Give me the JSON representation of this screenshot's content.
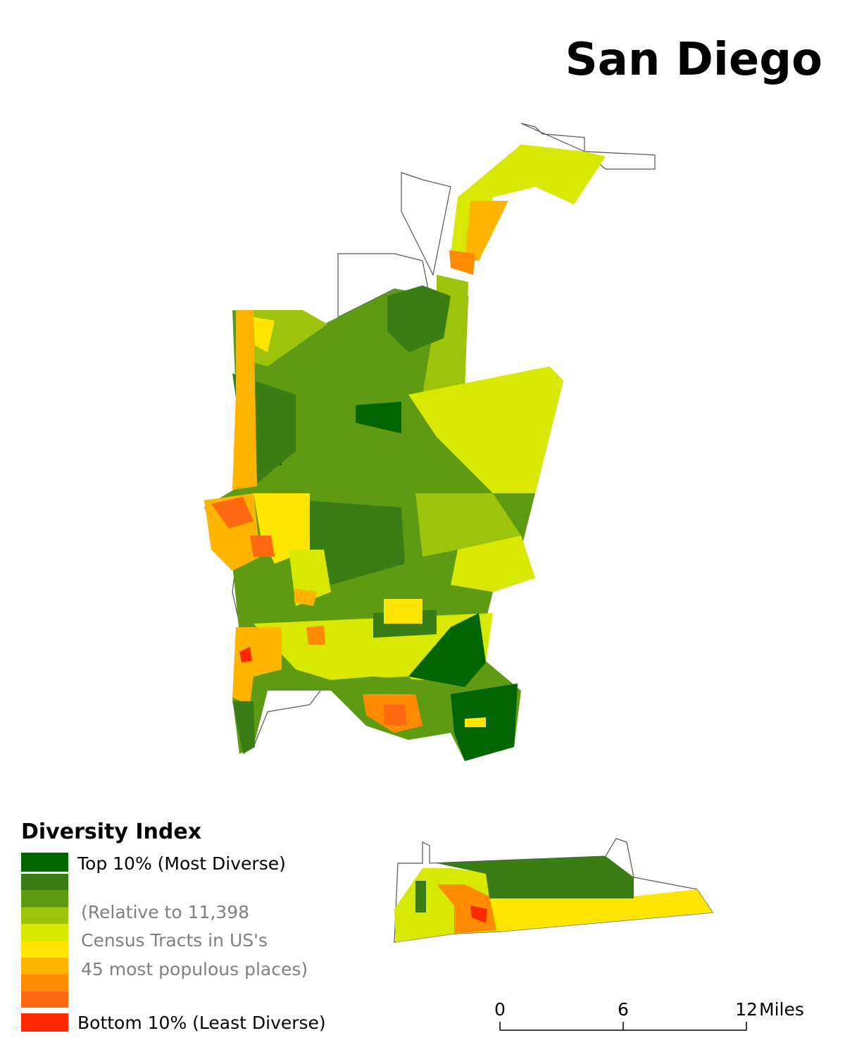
{
  "header": {
    "title": "San Diego"
  },
  "legend": {
    "title": "Diversity Index",
    "swatches": [
      "#006400",
      "#3a7d14",
      "#5e9a12",
      "#9dc40a",
      "#d8e800",
      "#ffe600",
      "#ffb400",
      "#ff8c00",
      "#ff6a10",
      "#ff2800"
    ],
    "top_label": "Top 10% (Most Diverse)",
    "bottom_label": "Bottom 10% (Least Diverse)",
    "note": [
      "(Relative to 11,398",
      "Census Tracts in US's",
      "45 most populous places)"
    ]
  },
  "scale_bar": {
    "ticks": [
      0,
      6,
      12
    ],
    "unit": "Miles"
  }
}
